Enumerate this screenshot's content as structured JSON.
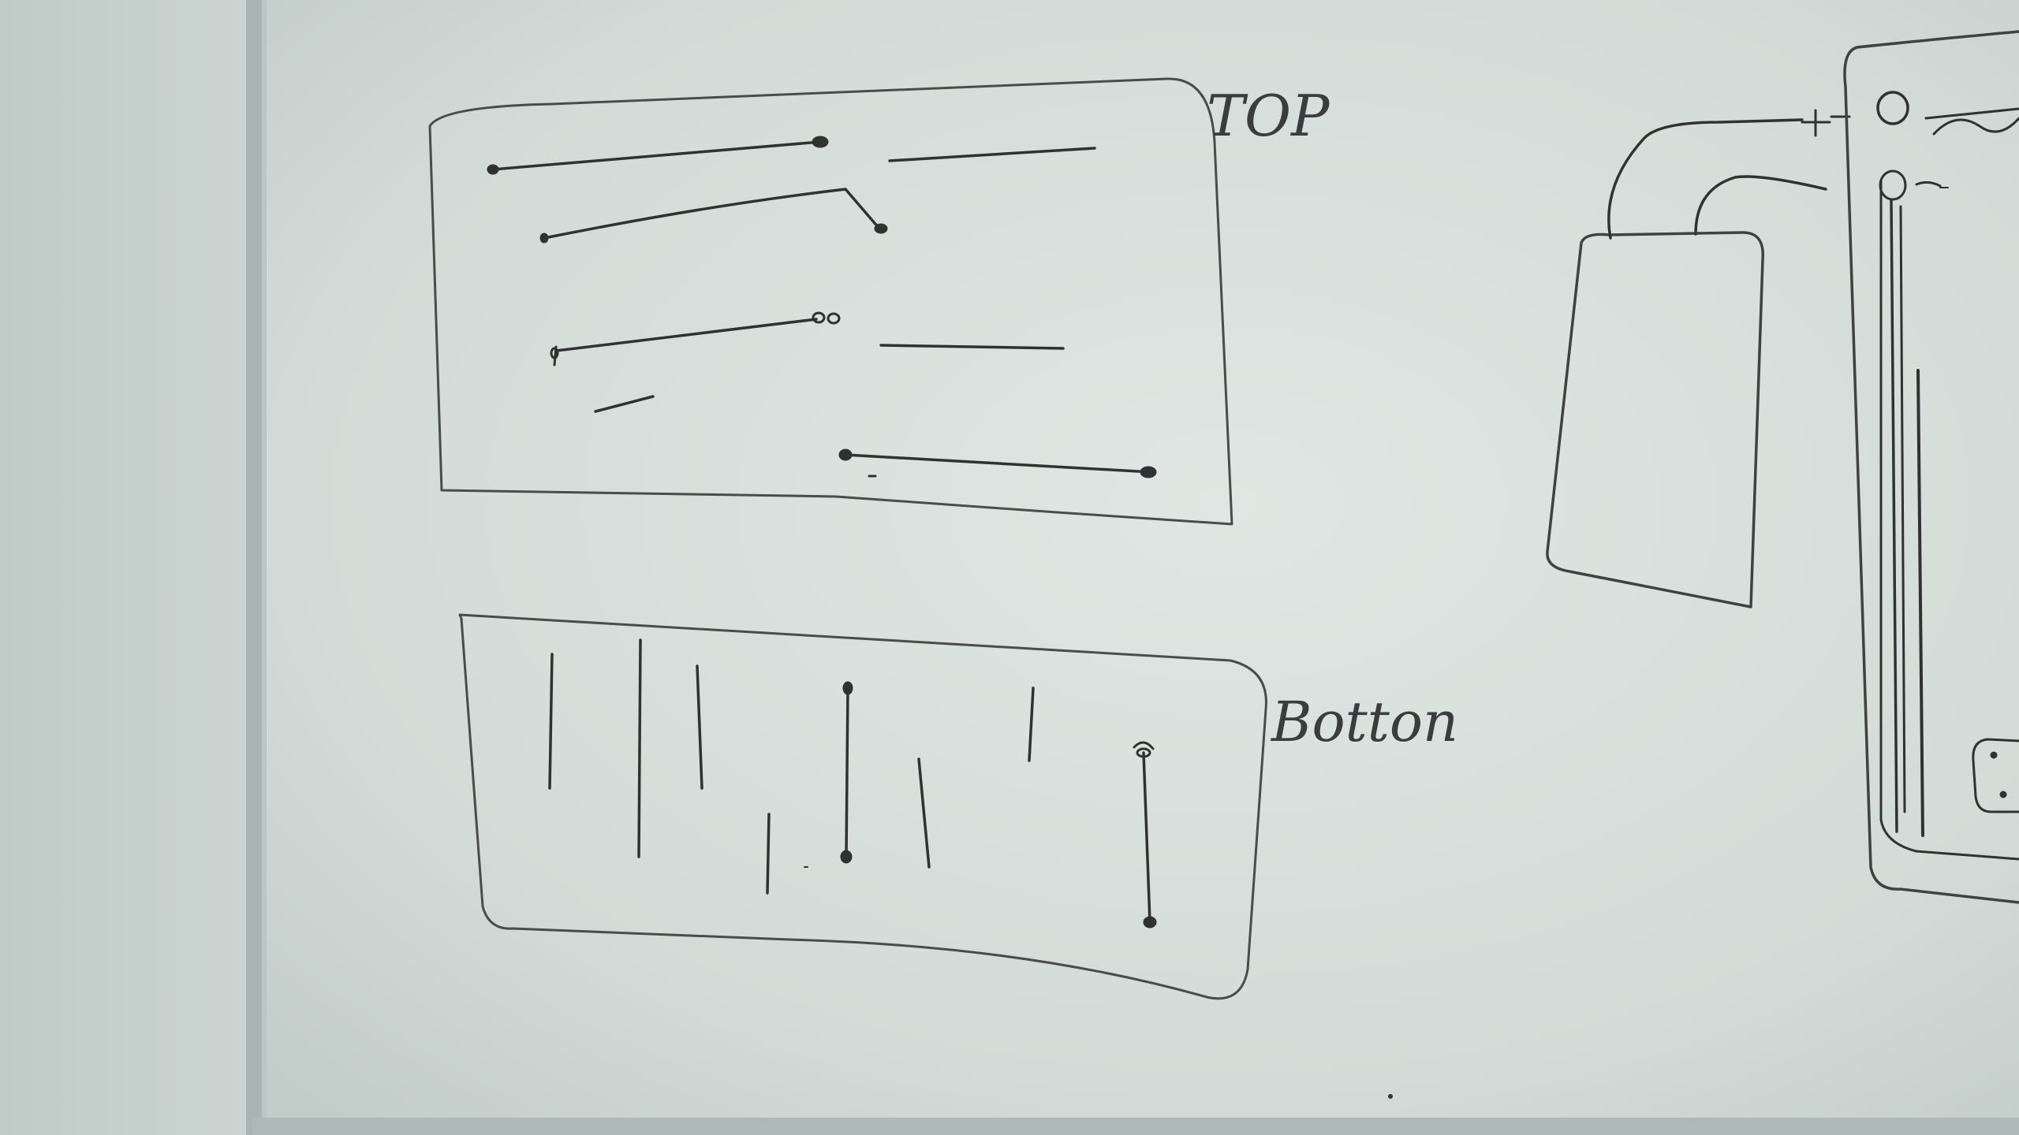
{
  "photo": {
    "subject": "whiteboard",
    "ink_color": "#2f3232",
    "board_color": "#d6dedb",
    "wall_color": "#c4ceca",
    "frame_color": "#a9b3b1"
  },
  "labels": {
    "top_label": "TOP",
    "bottom_label": "Botton",
    "plus_sign": "+",
    "minus_sign": "-"
  }
}
